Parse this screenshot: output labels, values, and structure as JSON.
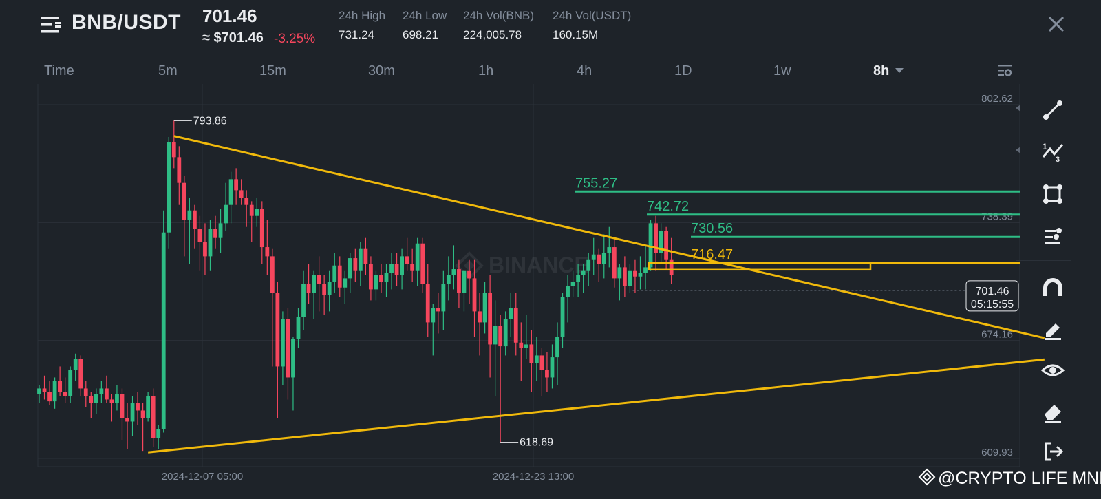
{
  "header": {
    "pair": "BNB/USDT",
    "last_price": "701.46",
    "usd_price": "≈ $701.46",
    "change": "-3.25%",
    "stats": [
      {
        "label": "24h High",
        "value": "731.24"
      },
      {
        "label": "24h Low",
        "value": "698.21"
      },
      {
        "label": "24h Vol(BNB)",
        "value": "224,005.78"
      },
      {
        "label": "24h Vol(USDT)",
        "value": "160.15M"
      }
    ]
  },
  "timeframes": [
    "Time",
    "5m",
    "15m",
    "30m",
    "1h",
    "4h",
    "1D",
    "1w",
    "8h"
  ],
  "active_timeframe": "8h",
  "toolbar_icons": [
    "line-tool-icon",
    "fib-tool-icon",
    "shape-tool-icon",
    "indicator-tool-icon",
    "magnet-icon",
    "pencil-icon",
    "eye-icon",
    "eraser-icon",
    "exit-icon"
  ],
  "footer_watermark": "@CRYPTO LIFE MNE",
  "chart_data": {
    "type": "candlestick",
    "ylim": [
      609.93,
      802.62
    ],
    "y_ticks": [
      "802.62",
      "738.39",
      "674.16",
      "609.93"
    ],
    "x_ticks": [
      "2024-12-07 05:00",
      "2024-12-23 13:00"
    ],
    "background_watermark": "BINANCE",
    "candles": [
      [
        645,
        650,
        640,
        648
      ],
      [
        648,
        655,
        642,
        646
      ],
      [
        646,
        652,
        639,
        641
      ],
      [
        641,
        654,
        637,
        652
      ],
      [
        652,
        660,
        644,
        646
      ],
      [
        646,
        654,
        640,
        644
      ],
      [
        644,
        660,
        640,
        658
      ],
      [
        658,
        667,
        652,
        664
      ],
      [
        664,
        666,
        644,
        648
      ],
      [
        648,
        652,
        638,
        644
      ],
      [
        644,
        646,
        632,
        640
      ],
      [
        640,
        648,
        634,
        645
      ],
      [
        645,
        652,
        640,
        648
      ],
      [
        648,
        655,
        640,
        642
      ],
      [
        642,
        645,
        630,
        640
      ],
      [
        640,
        650,
        636,
        645
      ],
      [
        645,
        648,
        620,
        632
      ],
      [
        632,
        640,
        615,
        630
      ],
      [
        630,
        644,
        622,
        640
      ],
      [
        640,
        646,
        628,
        636
      ],
      [
        636,
        640,
        614,
        632
      ],
      [
        632,
        646,
        630,
        644
      ],
      [
        644,
        648,
        616,
        621
      ],
      [
        621,
        628,
        615,
        626
      ],
      [
        626,
        745,
        624,
        733
      ],
      [
        733,
        785,
        724,
        782
      ],
      [
        782,
        793.86,
        768,
        774
      ],
      [
        774,
        780,
        748,
        760
      ],
      [
        760,
        764,
        720,
        740
      ],
      [
        740,
        752,
        716,
        745
      ],
      [
        745,
        748,
        724,
        735
      ],
      [
        735,
        742,
        712,
        728
      ],
      [
        728,
        738,
        710,
        720
      ],
      [
        720,
        740,
        712,
        735
      ],
      [
        735,
        742,
        724,
        730
      ],
      [
        730,
        746,
        722,
        738
      ],
      [
        738,
        760,
        734,
        748
      ],
      [
        748,
        766,
        738,
        762
      ],
      [
        762,
        768,
        748,
        756
      ],
      [
        756,
        762,
        748,
        752
      ],
      [
        752,
        756,
        736,
        748
      ],
      [
        748,
        750,
        728,
        742
      ],
      [
        742,
        752,
        736,
        746
      ],
      [
        746,
        750,
        716,
        725
      ],
      [
        725,
        740,
        710,
        720
      ],
      [
        720,
        724,
        660,
        700
      ],
      [
        700,
        706,
        632,
        660
      ],
      [
        660,
        690,
        650,
        686
      ],
      [
        686,
        692,
        642,
        654
      ],
      [
        654,
        676,
        636,
        675
      ],
      [
        675,
        692,
        670,
        687
      ],
      [
        687,
        712,
        680,
        705
      ],
      [
        705,
        716,
        694,
        700
      ],
      [
        700,
        712,
        686,
        710
      ],
      [
        710,
        720,
        690,
        705
      ],
      [
        705,
        710,
        688,
        699
      ],
      [
        699,
        712,
        690,
        706
      ],
      [
        706,
        722,
        700,
        715
      ],
      [
        715,
        720,
        698,
        703
      ],
      [
        703,
        712,
        694,
        708
      ],
      [
        708,
        722,
        700,
        719
      ],
      [
        719,
        724,
        706,
        712
      ],
      [
        712,
        728,
        704,
        724
      ],
      [
        724,
        730,
        710,
        716
      ],
      [
        716,
        720,
        696,
        702
      ],
      [
        702,
        712,
        696,
        710
      ],
      [
        710,
        716,
        700,
        706
      ],
      [
        706,
        716,
        698,
        711
      ],
      [
        711,
        722,
        702,
        716
      ],
      [
        716,
        722,
        704,
        710
      ],
      [
        710,
        724,
        702,
        720
      ],
      [
        720,
        730,
        712,
        716
      ],
      [
        716,
        724,
        706,
        712
      ],
      [
        712,
        730,
        704,
        727
      ],
      [
        727,
        730,
        700,
        705
      ],
      [
        705,
        716,
        676,
        684
      ],
      [
        684,
        694,
        666,
        692
      ],
      [
        692,
        700,
        678,
        690
      ],
      [
        690,
        712,
        680,
        705
      ],
      [
        705,
        720,
        696,
        710
      ],
      [
        710,
        726,
        702,
        713
      ],
      [
        713,
        718,
        692,
        700
      ],
      [
        700,
        712,
        690,
        712
      ],
      [
        712,
        718,
        694,
        708
      ],
      [
        708,
        718,
        676,
        690
      ],
      [
        690,
        700,
        666,
        684
      ],
      [
        684,
        706,
        678,
        700
      ],
      [
        700,
        710,
        654,
        672
      ],
      [
        672,
        696,
        644,
        682
      ],
      [
        682,
        688,
        618.69,
        671
      ],
      [
        671,
        690,
        666,
        686
      ],
      [
        686,
        700,
        676,
        692
      ],
      [
        692,
        700,
        666,
        673
      ],
      [
        673,
        684,
        652,
        670
      ],
      [
        670,
        688,
        664,
        672
      ],
      [
        672,
        680,
        646,
        662
      ],
      [
        662,
        676,
        652,
        666
      ],
      [
        666,
        670,
        644,
        658
      ],
      [
        658,
        668,
        646,
        654
      ],
      [
        654,
        672,
        648,
        665
      ],
      [
        665,
        684,
        650,
        676
      ],
      [
        676,
        700,
        670,
        698
      ],
      [
        698,
        710,
        684,
        704
      ],
      [
        704,
        712,
        698,
        706
      ],
      [
        706,
        716,
        698,
        710
      ],
      [
        710,
        716,
        700,
        712
      ],
      [
        712,
        722,
        704,
        718
      ],
      [
        718,
        730,
        710,
        721
      ],
      [
        721,
        724,
        706,
        716
      ],
      [
        716,
        732,
        708,
        722
      ],
      [
        722,
        736,
        714,
        725
      ],
      [
        725,
        730,
        703,
        708
      ],
      [
        708,
        716,
        696,
        714
      ],
      [
        714,
        720,
        698,
        704
      ],
      [
        704,
        716,
        700,
        712
      ],
      [
        712,
        718,
        700,
        709
      ],
      [
        709,
        720,
        702,
        711
      ],
      [
        711,
        726,
        702,
        714
      ],
      [
        714,
        740,
        712,
        738
      ],
      [
        738,
        742,
        712,
        722
      ],
      [
        722,
        738,
        716,
        734
      ],
      [
        734,
        736,
        713,
        718
      ],
      [
        718,
        730,
        705,
        710
      ]
    ],
    "resistance_levels": [
      {
        "price": 755.27,
        "label": "755.27",
        "color": "#2ebd85"
      },
      {
        "price": 742.72,
        "label": "742.72",
        "color": "#2ebd85"
      },
      {
        "price": 730.56,
        "label": "730.56",
        "color": "#2ebd85"
      },
      {
        "price": 716.47,
        "label": "716.47",
        "color": "#f0b90b"
      }
    ],
    "trendlines": [
      {
        "from": [
          26,
          785.5
        ],
        "to": [
          194,
          675.5
        ],
        "color": "#f0b90b"
      },
      {
        "from": [
          21,
          613.2
        ],
        "to": [
          194,
          663.8
        ],
        "color": "#f0b90b"
      }
    ],
    "annotations": [
      {
        "candle": 26,
        "price": 793.86,
        "label": "793.86",
        "side": "high"
      },
      {
        "candle": 89,
        "price": 618.69,
        "label": "618.69",
        "side": "low"
      }
    ],
    "current_price": {
      "price": 701.46,
      "label": "701.46",
      "countdown": "05:15:55"
    },
    "colors": {
      "up": "#2ebd85",
      "down": "#f6465d",
      "grid": "#2b3139",
      "axis_text": "#848e9c"
    }
  }
}
